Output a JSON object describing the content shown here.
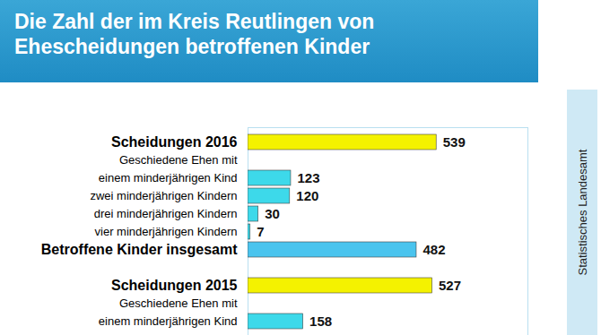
{
  "chart_data": {
    "type": "bar",
    "orientation": "horizontal",
    "title": "Die Zahl der im Kreis Reutlingen von Ehescheidungen betroffenen Kinder",
    "source": "Statistisches Landesamt",
    "categories": [
      "Scheidungen 2016",
      "Geschiedene Ehen mit",
      "einem minderjährigen Kind",
      "zwei minderjährigen Kindern",
      "drei minderjährigen Kindern",
      "vier minderjährigen Kindern",
      "Betroffene Kinder insgesamt",
      null,
      "Scheidungen 2015",
      "Geschiedene Ehen mit",
      "einem minderjährigen Kind"
    ],
    "values": [
      539,
      null,
      123,
      120,
      30,
      7,
      482,
      null,
      527,
      null,
      158
    ],
    "colors": [
      "#f4f200",
      null,
      "#3dd9ea",
      "#3dd9ea",
      "#3dd9ea",
      "#3dd9ea",
      "#4ac4ee",
      null,
      "#f4f200",
      null,
      "#3dd9ea"
    ],
    "xlim": [
      0,
      800
    ],
    "data_labels": true,
    "tick_labels": "y",
    "grid": false
  }
}
